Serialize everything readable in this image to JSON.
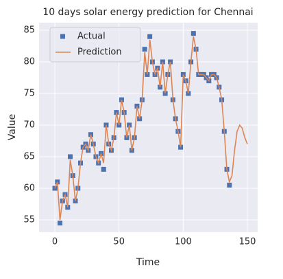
{
  "chart_data": {
    "type": "line",
    "title": "10 days solar energy prediction for Chennai",
    "x_label": "Time",
    "y_label": "Value",
    "xlim": [
      -12.3,
      158
    ],
    "ylim": [
      53.04,
      86.2
    ],
    "xticks": [
      0,
      50,
      100,
      150
    ],
    "yticks": [
      55,
      60,
      65,
      70,
      75,
      80,
      85
    ],
    "grid": true,
    "legend": "upper left",
    "series": [
      {
        "name": "Actual",
        "color": "#4c72b0",
        "marker": "square",
        "x": [
          0,
          2,
          4,
          6,
          8,
          10,
          12,
          14,
          16,
          18,
          20,
          22,
          24,
          26,
          28,
          30,
          32,
          34,
          36,
          38,
          40,
          42,
          44,
          46,
          48,
          50,
          52,
          54,
          56,
          58,
          60,
          62,
          64,
          66,
          68,
          70,
          72,
          74,
          76,
          78,
          80,
          82,
          84,
          86,
          88,
          90,
          92,
          94,
          96,
          98,
          100,
          102,
          104,
          106,
          108,
          110,
          112,
          114,
          116,
          118,
          120,
          122,
          124,
          126,
          128,
          130,
          132,
          134,
          136
        ],
        "values": [
          60,
          61,
          54.5,
          58,
          59,
          57,
          65,
          62,
          58,
          60,
          64,
          66.5,
          67,
          66,
          68.5,
          67,
          65,
          64,
          65.5,
          63,
          70,
          67,
          66,
          68,
          72,
          70,
          74,
          72,
          68,
          70,
          66,
          68,
          73,
          71,
          74,
          82,
          78,
          84,
          80,
          78,
          79,
          76,
          80,
          75,
          78,
          80,
          74,
          71,
          69,
          66.5,
          78,
          77,
          75,
          80,
          84.5,
          82,
          78,
          78,
          78,
          77.5,
          77,
          78,
          78,
          77.5,
          76,
          74,
          69,
          63,
          60.5
        ]
      },
      {
        "name": "Prediction",
        "color": "#dd8452",
        "marker": "line",
        "x": [
          0,
          2,
          4,
          6,
          8,
          10,
          12,
          14,
          16,
          18,
          20,
          22,
          24,
          26,
          28,
          30,
          32,
          34,
          36,
          38,
          40,
          42,
          44,
          46,
          48,
          50,
          52,
          54,
          56,
          58,
          60,
          62,
          64,
          66,
          68,
          70,
          72,
          74,
          76,
          78,
          80,
          82,
          84,
          86,
          88,
          90,
          92,
          94,
          96,
          98,
          100,
          102,
          104,
          106,
          108,
          110,
          112,
          114,
          116,
          118,
          120,
          122,
          124,
          126,
          128,
          130,
          132,
          134,
          136,
          138,
          140,
          142,
          144,
          146,
          148,
          150
        ],
        "values": [
          60,
          61,
          55,
          58,
          59,
          57,
          64.5,
          62,
          58,
          60,
          64,
          66.5,
          67,
          66,
          68.5,
          67,
          65,
          64,
          65.5,
          64,
          70,
          67,
          66,
          68,
          72,
          70,
          74,
          72,
          68,
          70,
          66,
          68,
          73,
          71,
          74,
          81.5,
          78,
          83.5,
          80,
          78,
          79,
          76,
          80,
          75,
          78,
          80,
          74,
          71,
          69,
          66.5,
          78,
          77,
          75,
          80,
          84,
          82,
          78,
          78,
          78,
          77.5,
          77,
          78,
          78,
          77.5,
          76,
          74,
          69,
          63,
          61,
          62,
          66,
          69,
          70,
          69.5,
          68,
          67
        ]
      }
    ]
  }
}
